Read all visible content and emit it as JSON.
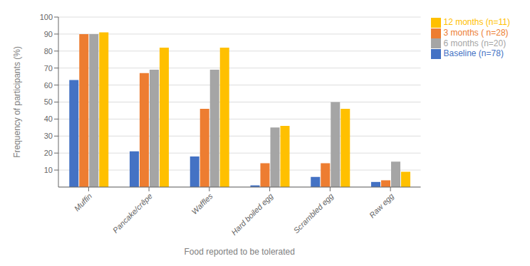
{
  "chart_data": {
    "type": "bar",
    "xlabel": "Food reported to be tolerated",
    "ylabel": "Frequency of participants (%)",
    "categories": [
      "Muffin",
      "Pancake/crêpe",
      "Waffles",
      "Hard boiled egg",
      "Scrambled egg",
      "Raw egg"
    ],
    "series": [
      {
        "name": "Baseline (n=78)",
        "color": "#4472C4",
        "values": [
          63,
          21,
          18,
          1,
          6,
          3
        ]
      },
      {
        "name": "3 months ( n=28)",
        "color": "#ED7D31",
        "values": [
          90,
          67,
          46,
          14,
          14,
          4
        ]
      },
      {
        "name": "6 months (n=20)",
        "color": "#A5A5A5",
        "values": [
          90,
          69,
          69,
          35,
          50,
          15
        ]
      },
      {
        "name": "12 months (n=11)",
        "color": "#FFC000",
        "values": [
          91,
          82,
          82,
          36,
          46,
          9
        ]
      }
    ],
    "ylim": [
      0,
      100
    ],
    "yticks": [
      10,
      20,
      30,
      40,
      50,
      60,
      70,
      80,
      90,
      100
    ],
    "grid": true,
    "legend": "right"
  }
}
